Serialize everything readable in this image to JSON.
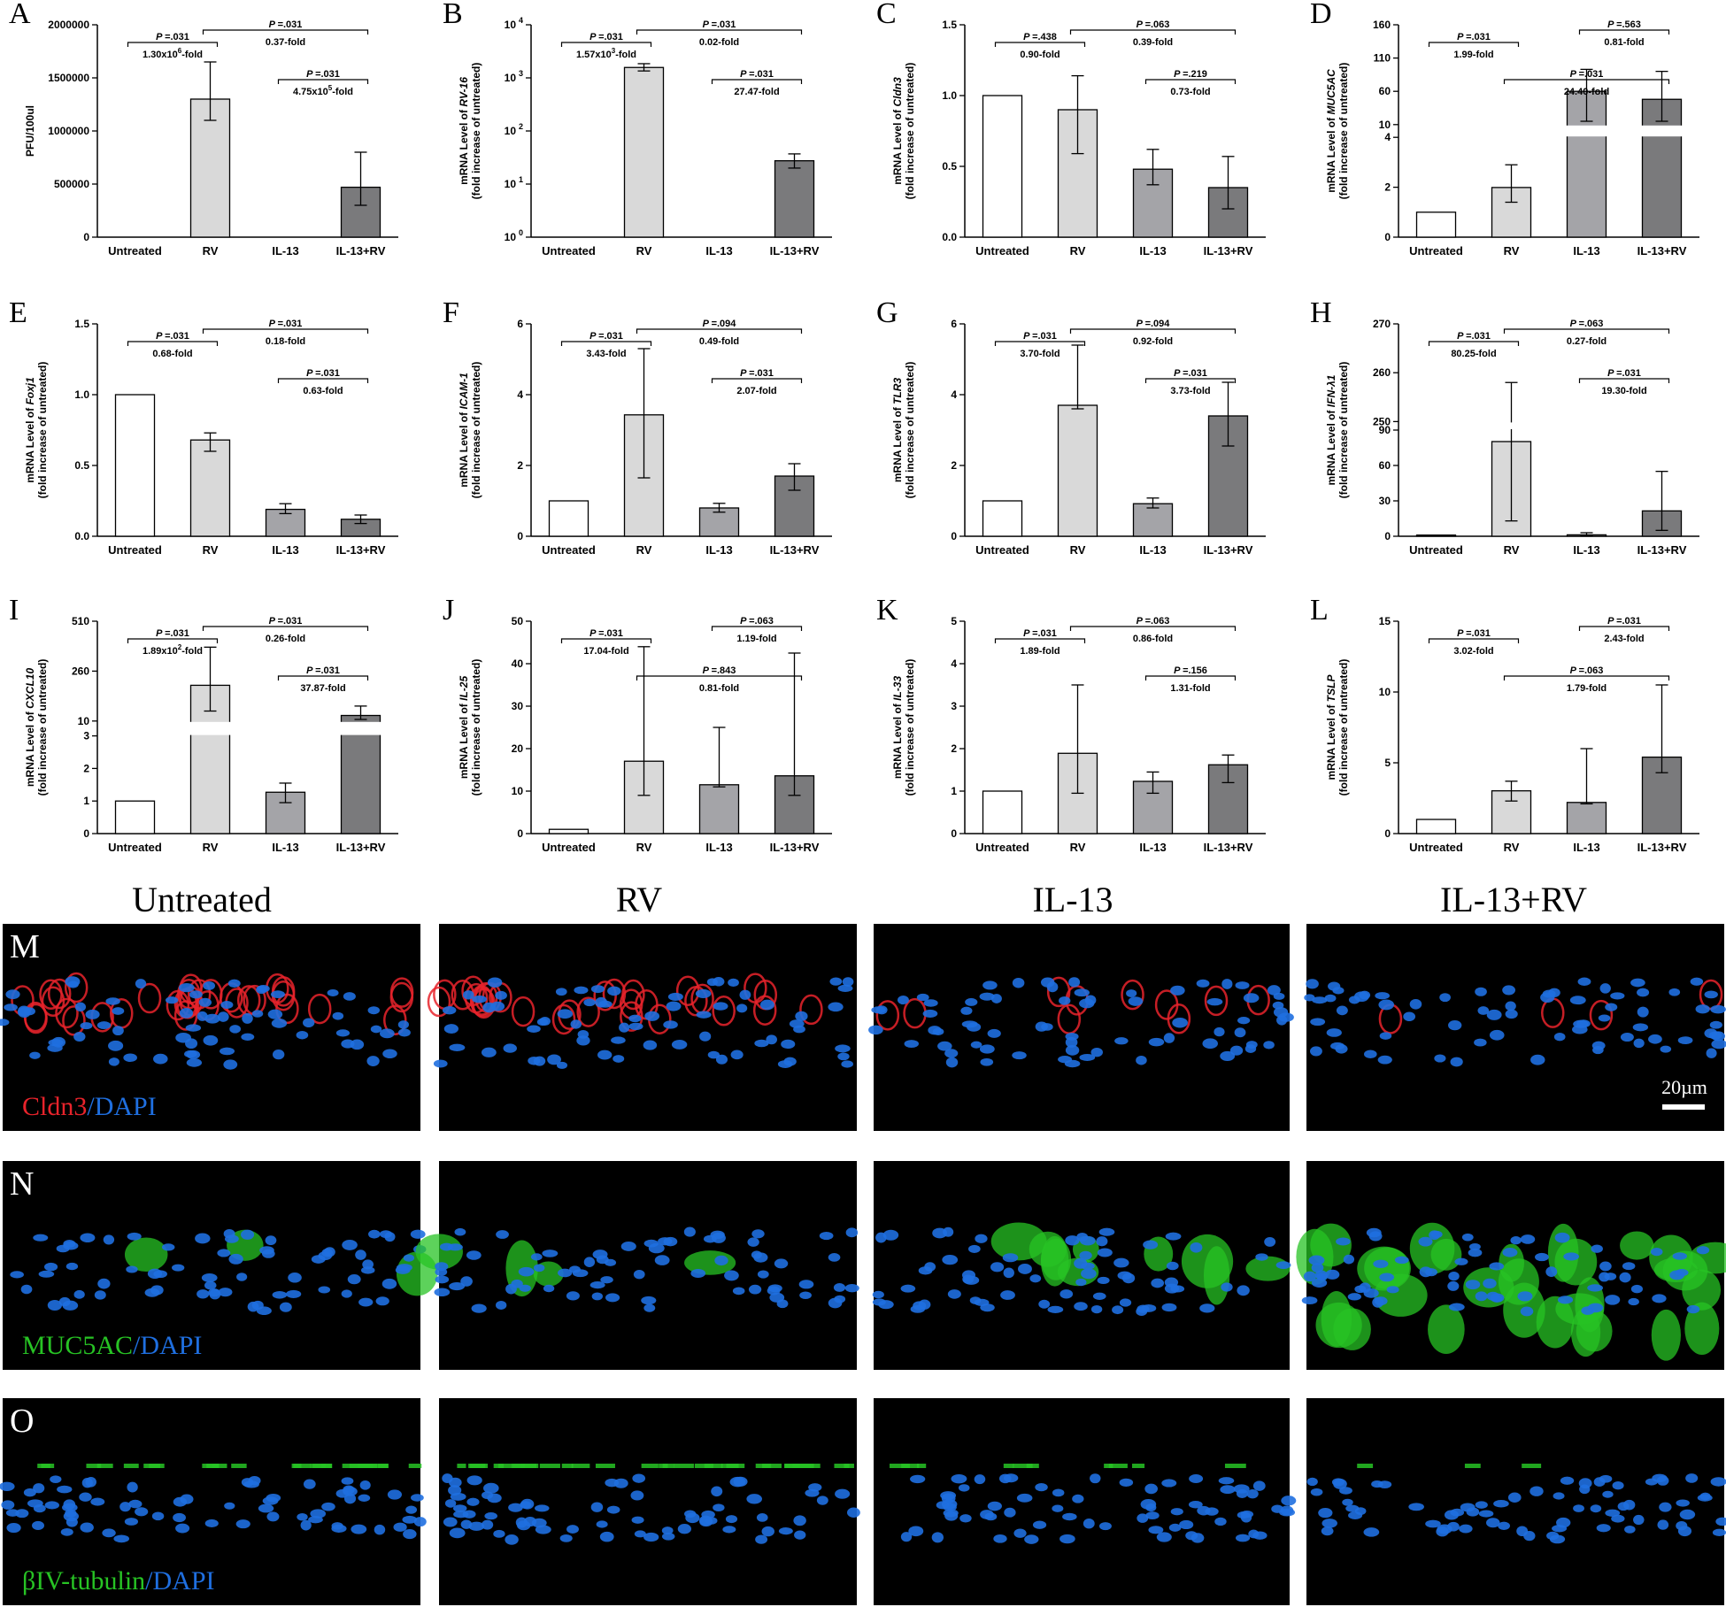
{
  "figure": {
    "group_headers": [
      "Untreated",
      "RV",
      "IL-13",
      "IL-13+RV"
    ],
    "micro_rows": [
      {
        "letter": "M",
        "stain_a": "Cldn3",
        "stain_b": "DAPI",
        "color_a": "#e8232b",
        "color_b": "#1f6fe0",
        "scale_bar": "20µm"
      },
      {
        "letter": "N",
        "stain_a": "MUC5AC",
        "stain_b": "DAPI",
        "color_a": "#27c324",
        "color_b": "#1f6fe0"
      },
      {
        "letter": "O",
        "stain_a": "βIV-tubulin",
        "stain_b": "DAPI",
        "color_a": "#27c324",
        "color_b": "#1f6fe0"
      }
    ],
    "bar_colors": [
      "#ffffff",
      "#d9d9d9",
      "#a4a4a8",
      "#7a7a7c"
    ]
  },
  "chart_data": [
    {
      "letter": "A",
      "type": "bar",
      "ylabel": "PFU/100ul",
      "ylabel_italic": "",
      "categories": [
        "Untreated",
        "RV",
        "IL-13",
        "IL-13+RV"
      ],
      "values": [
        0,
        1300000,
        0,
        470000
      ],
      "errors": [
        [
          0,
          0
        ],
        [
          1100000,
          1650000
        ],
        [
          0,
          0
        ],
        [
          300000,
          800000
        ]
      ],
      "scale": "linear",
      "ylim": [
        0,
        2000000
      ],
      "ticks": [
        0,
        500000,
        1000000,
        1500000,
        2000000
      ],
      "tick_labels": [
        "0",
        "500000",
        "1000000",
        "1500000",
        "2000000"
      ],
      "comparisons": [
        {
          "from": 0,
          "to": 1,
          "level": 0,
          "p": "=.031",
          "fold": "1.30x10",
          "sup": "6",
          "suffix": "-fold"
        },
        {
          "from": 1,
          "to": 3,
          "level": 1,
          "p": "=.031",
          "fold": "0.37-fold"
        },
        {
          "from": 2,
          "to": 3,
          "level": 2,
          "p": "=.031",
          "fold": "4.75x10",
          "sup": "5",
          "suffix": "-fold"
        }
      ]
    },
    {
      "letter": "B",
      "type": "bar",
      "ylabel": "mRNA Level of ",
      "ylabel_italic": "RV-16",
      "categories": [
        "Untreated",
        "RV",
        "IL-13",
        "IL-13+RV"
      ],
      "values": [
        0,
        1570,
        0,
        27.47
      ],
      "errors": [
        [
          0,
          0
        ],
        [
          1350,
          1850
        ],
        [
          0,
          0
        ],
        [
          20,
          37
        ]
      ],
      "scale": "log",
      "ylim": [
        1,
        10000
      ],
      "ticks": [
        1,
        10,
        100,
        1000,
        10000
      ],
      "tick_labels": [
        "10",
        "10",
        "10",
        "10",
        "10"
      ],
      "tick_exps": [
        "0",
        "1",
        "2",
        "3",
        "4"
      ],
      "comparisons": [
        {
          "from": 0,
          "to": 1,
          "level": 0,
          "p": "=.031",
          "fold": "1.57x10",
          "sup": "3",
          "suffix": "-fold"
        },
        {
          "from": 1,
          "to": 3,
          "level": 1,
          "p": "=.031",
          "fold": "0.02-fold"
        },
        {
          "from": 2,
          "to": 3,
          "level": 2,
          "p": "=.031",
          "fold": "27.47-fold"
        }
      ]
    },
    {
      "letter": "C",
      "type": "bar",
      "ylabel": "mRNA Level of ",
      "ylabel_italic": "Cldn3",
      "categories": [
        "Untreated",
        "RV",
        "IL-13",
        "IL-13+RV"
      ],
      "values": [
        1.0,
        0.9,
        0.48,
        0.35
      ],
      "errors": [
        [
          1.0,
          1.0
        ],
        [
          0.59,
          1.14
        ],
        [
          0.37,
          0.62
        ],
        [
          0.2,
          0.57
        ]
      ],
      "scale": "linear",
      "ylim": [
        0,
        1.5
      ],
      "ticks": [
        0,
        0.5,
        1.0,
        1.5
      ],
      "tick_labels": [
        "0.0",
        "0.5",
        "1.0",
        "1.5"
      ],
      "comparisons": [
        {
          "from": 0,
          "to": 1,
          "level": 0,
          "p": "=.438",
          "fold": "0.90-fold"
        },
        {
          "from": 1,
          "to": 3,
          "level": 1,
          "p": "=.063",
          "fold": "0.39-fold"
        },
        {
          "from": 2,
          "to": 3,
          "level": 2,
          "p": "=.219",
          "fold": "0.73-fold"
        }
      ]
    },
    {
      "letter": "D",
      "type": "bar",
      "ylabel": "mRNA Level of ",
      "ylabel_italic": "MUC5AC",
      "categories": [
        "Untreated",
        "RV",
        "IL-13",
        "IL-13+RV"
      ],
      "values": [
        1.0,
        1.99,
        60,
        48
      ],
      "errors": [
        [
          1.0,
          1.0
        ],
        [
          1.4,
          2.9
        ],
        [
          15,
          93
        ],
        [
          15,
          90
        ]
      ],
      "scale": "broken",
      "ylim": [
        0,
        160
      ],
      "segments": [
        {
          "range": [
            0,
            4
          ],
          "frac": [
            0,
            0.47
          ]
        },
        {
          "range": [
            10,
            160
          ],
          "frac": [
            0.53,
            1.0
          ]
        }
      ],
      "ticks": [
        0,
        2,
        4,
        10,
        60,
        110,
        160
      ],
      "tick_labels": [
        "0",
        "2",
        "4",
        "10",
        "60",
        "110",
        "160"
      ],
      "comparisons": [
        {
          "from": 0,
          "to": 1,
          "level": 0,
          "p": "=.031",
          "fold": "1.99-fold"
        },
        {
          "from": 1,
          "to": 3,
          "level": 2,
          "p": "=.031",
          "fold": "24.40-fold"
        },
        {
          "from": 2,
          "to": 3,
          "level": 1,
          "p": "=.563",
          "fold": "0.81-fold"
        }
      ]
    },
    {
      "letter": "E",
      "type": "bar",
      "ylabel": "mRNA Level of ",
      "ylabel_italic": "Foxj1",
      "categories": [
        "Untreated",
        "RV",
        "IL-13",
        "IL-13+RV"
      ],
      "values": [
        1.0,
        0.68,
        0.19,
        0.12
      ],
      "errors": [
        [
          1.0,
          1.0
        ],
        [
          0.6,
          0.73
        ],
        [
          0.16,
          0.23
        ],
        [
          0.09,
          0.15
        ]
      ],
      "scale": "linear",
      "ylim": [
        0,
        1.5
      ],
      "ticks": [
        0,
        0.5,
        1.0,
        1.5
      ],
      "tick_labels": [
        "0.0",
        "0.5",
        "1.0",
        "1.5"
      ],
      "comparisons": [
        {
          "from": 0,
          "to": 1,
          "level": 0,
          "p": "=.031",
          "fold": "0.68-fold"
        },
        {
          "from": 1,
          "to": 3,
          "level": 1,
          "p": "=.031",
          "fold": "0.18-fold"
        },
        {
          "from": 2,
          "to": 3,
          "level": 2,
          "p": "=.031",
          "fold": "0.63-fold"
        }
      ]
    },
    {
      "letter": "F",
      "type": "bar",
      "ylabel": "mRNA Level of ",
      "ylabel_italic": "ICAM-1",
      "categories": [
        "Untreated",
        "RV",
        "IL-13",
        "IL-13+RV"
      ],
      "values": [
        1.0,
        3.43,
        0.8,
        1.7
      ],
      "errors": [
        [
          1.0,
          1.0
        ],
        [
          1.65,
          5.3
        ],
        [
          0.68,
          0.93
        ],
        [
          1.3,
          2.05
        ]
      ],
      "scale": "linear",
      "ylim": [
        0,
        6
      ],
      "ticks": [
        0,
        2,
        4,
        6
      ],
      "tick_labels": [
        "0",
        "2",
        "4",
        "6"
      ],
      "comparisons": [
        {
          "from": 0,
          "to": 1,
          "level": 0,
          "p": "=.031",
          "fold": "3.43-fold"
        },
        {
          "from": 1,
          "to": 3,
          "level": 1,
          "p": "=.094",
          "fold": "0.49-fold"
        },
        {
          "from": 2,
          "to": 3,
          "level": 2,
          "p": "=.031",
          "fold": "2.07-fold"
        }
      ]
    },
    {
      "letter": "G",
      "type": "bar",
      "ylabel": "mRNA Level of ",
      "ylabel_italic": "TLR3",
      "categories": [
        "Untreated",
        "RV",
        "IL-13",
        "IL-13+RV"
      ],
      "values": [
        1.0,
        3.7,
        0.92,
        3.4
      ],
      "errors": [
        [
          1.0,
          1.0
        ],
        [
          3.6,
          5.4
        ],
        [
          0.8,
          1.08
        ],
        [
          2.55,
          4.35
        ]
      ],
      "scale": "linear",
      "ylim": [
        0,
        6
      ],
      "ticks": [
        0,
        2,
        4,
        6
      ],
      "tick_labels": [
        "0",
        "2",
        "4",
        "6"
      ],
      "comparisons": [
        {
          "from": 0,
          "to": 1,
          "level": 0,
          "p": "=.031",
          "fold": "3.70-fold"
        },
        {
          "from": 1,
          "to": 3,
          "level": 1,
          "p": "=.094",
          "fold": "0.92-fold"
        },
        {
          "from": 2,
          "to": 3,
          "level": 2,
          "p": "=.031",
          "fold": "3.73-fold"
        }
      ]
    },
    {
      "letter": "H",
      "type": "bar",
      "ylabel": "mRNA Level of ",
      "ylabel_italic": "IFN-λ1",
      "categories": [
        "Untreated",
        "RV",
        "IL-13",
        "IL-13+RV"
      ],
      "values": [
        1.0,
        80.25,
        1.2,
        21.5
      ],
      "errors": [
        [
          1.0,
          1.0
        ],
        [
          13,
          258
        ],
        [
          0.5,
          3
        ],
        [
          5,
          55
        ]
      ],
      "scale": "broken",
      "ylim": [
        0,
        270
      ],
      "segments": [
        {
          "range": [
            0,
            90
          ],
          "frac": [
            0,
            0.5
          ]
        },
        {
          "range": [
            250,
            270
          ],
          "frac": [
            0.54,
            1.0
          ]
        }
      ],
      "ticks": [
        0,
        30,
        60,
        90,
        250,
        260,
        270
      ],
      "tick_labels": [
        "0",
        "30",
        "60",
        "90",
        "250",
        "260",
        "270"
      ],
      "comparisons": [
        {
          "from": 0,
          "to": 1,
          "level": 0,
          "p": "=.031",
          "fold": "80.25-fold"
        },
        {
          "from": 1,
          "to": 3,
          "level": 1,
          "p": "=.063",
          "fold": "0.27-fold"
        },
        {
          "from": 2,
          "to": 3,
          "level": 2,
          "p": "=.031",
          "fold": "19.30-fold"
        }
      ]
    },
    {
      "letter": "I",
      "type": "bar",
      "ylabel": "mRNA Level of ",
      "ylabel_italic": "CXCL10",
      "categories": [
        "Untreated",
        "RV",
        "IL-13",
        "IL-13+RV"
      ],
      "values": [
        1.0,
        189,
        1.27,
        37.87
      ],
      "errors": [
        [
          1.0,
          1.0
        ],
        [
          60,
          380
        ],
        [
          0.95,
          1.55
        ],
        [
          18,
          85
        ]
      ],
      "scale": "broken",
      "ylim": [
        0,
        510
      ],
      "segments": [
        {
          "range": [
            0,
            3
          ],
          "frac": [
            0,
            0.46
          ]
        },
        {
          "range": [
            10,
            510
          ],
          "frac": [
            0.53,
            1.0
          ]
        }
      ],
      "ticks": [
        0,
        1,
        2,
        3,
        10,
        260,
        510
      ],
      "tick_labels": [
        "0",
        "1",
        "2",
        "3",
        "10",
        "260",
        "510"
      ],
      "comparisons": [
        {
          "from": 0,
          "to": 1,
          "level": 0,
          "p": "=.031",
          "fold": "1.89x10",
          "sup": "2",
          "suffix": "-fold"
        },
        {
          "from": 1,
          "to": 3,
          "level": 1,
          "p": "=.031",
          "fold": "0.26-fold"
        },
        {
          "from": 2,
          "to": 3,
          "level": 2,
          "p": "=.031",
          "fold": "37.87-fold"
        }
      ]
    },
    {
      "letter": "J",
      "type": "bar",
      "ylabel": "mRNA Level of ",
      "ylabel_italic": "IL-25",
      "categories": [
        "Untreated",
        "RV",
        "IL-13",
        "IL-13+RV"
      ],
      "values": [
        1.0,
        17.04,
        11.5,
        13.6
      ],
      "errors": [
        [
          1.0,
          1.0
        ],
        [
          9,
          44
        ],
        [
          11,
          25
        ],
        [
          9,
          42.5
        ]
      ],
      "scale": "linear",
      "ylim": [
        0,
        50
      ],
      "ticks": [
        0,
        10,
        20,
        30,
        40,
        50
      ],
      "tick_labels": [
        "0",
        "10",
        "20",
        "30",
        "40",
        "50"
      ],
      "comparisons": [
        {
          "from": 0,
          "to": 1,
          "level": 0,
          "p": "=.031",
          "fold": "17.04-fold"
        },
        {
          "from": 1,
          "to": 3,
          "level": 2,
          "p": "=.843",
          "fold": "0.81-fold"
        },
        {
          "from": 2,
          "to": 3,
          "level": 1,
          "p": "=.063",
          "fold": "1.19-fold"
        }
      ]
    },
    {
      "letter": "K",
      "type": "bar",
      "ylabel": "mRNA Level of ",
      "ylabel_italic": "IL-33",
      "categories": [
        "Untreated",
        "RV",
        "IL-13",
        "IL-13+RV"
      ],
      "values": [
        1.0,
        1.89,
        1.23,
        1.62
      ],
      "errors": [
        [
          1.0,
          1.0
        ],
        [
          0.95,
          3.5
        ],
        [
          0.95,
          1.45
        ],
        [
          1.2,
          1.85
        ]
      ],
      "scale": "linear",
      "ylim": [
        0,
        5
      ],
      "ticks": [
        0,
        1,
        2,
        3,
        4,
        5
      ],
      "tick_labels": [
        "0",
        "1",
        "2",
        "3",
        "4",
        "5"
      ],
      "comparisons": [
        {
          "from": 0,
          "to": 1,
          "level": 0,
          "p": "=.031",
          "fold": "1.89-fold"
        },
        {
          "from": 1,
          "to": 3,
          "level": 1,
          "p": "=.063",
          "fold": "0.86-fold"
        },
        {
          "from": 2,
          "to": 3,
          "level": 2,
          "p": "=.156",
          "fold": "1.31-fold"
        }
      ]
    },
    {
      "letter": "L",
      "type": "bar",
      "ylabel": "mRNA Level of ",
      "ylabel_italic": "TSLP",
      "categories": [
        "Untreated",
        "RV",
        "IL-13",
        "IL-13+RV"
      ],
      "values": [
        1.0,
        3.02,
        2.2,
        5.4
      ],
      "errors": [
        [
          1.0,
          1.0
        ],
        [
          2.3,
          3.7
        ],
        [
          2.1,
          6.0
        ],
        [
          4.3,
          10.5
        ]
      ],
      "scale": "linear",
      "ylim": [
        0,
        15
      ],
      "ticks": [
        0,
        5,
        10,
        15
      ],
      "tick_labels": [
        "0",
        "5",
        "10",
        "15"
      ],
      "comparisons": [
        {
          "from": 0,
          "to": 1,
          "level": 0,
          "p": "=.031",
          "fold": "3.02-fold"
        },
        {
          "from": 1,
          "to": 3,
          "level": 2,
          "p": "=.063",
          "fold": "1.79-fold"
        },
        {
          "from": 2,
          "to": 3,
          "level": 1,
          "p": "=.031",
          "fold": "2.43-fold"
        }
      ]
    }
  ]
}
